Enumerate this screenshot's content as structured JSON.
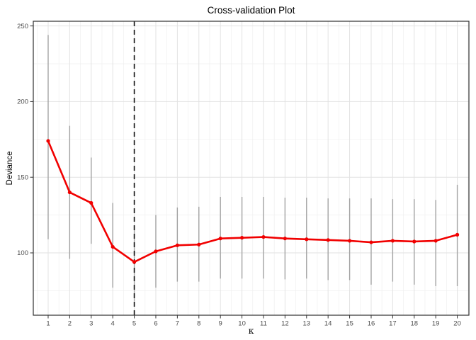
{
  "title": "Cross-validation Plot",
  "chart_data": {
    "type": "line",
    "title": "Cross-validation Plot",
    "xlabel": "κ",
    "ylabel": "Deviance",
    "x": [
      1,
      2,
      3,
      4,
      5,
      6,
      7,
      8,
      9,
      10,
      11,
      12,
      13,
      14,
      15,
      16,
      17,
      18,
      19,
      20
    ],
    "series": [
      {
        "name": "mean-deviance",
        "values": [
          174,
          140,
          133,
          104,
          94,
          101,
          105,
          105.5,
          109.5,
          110,
          110.5,
          109.5,
          109,
          108.5,
          108,
          107,
          108,
          107.5,
          108,
          112
        ]
      }
    ],
    "error_bars": {
      "lower": [
        109,
        96,
        106,
        77,
        68,
        77,
        81,
        81,
        83,
        83,
        83,
        82.5,
        83,
        82,
        82,
        79,
        81,
        79,
        78,
        78
      ],
      "upper": [
        244,
        184,
        163,
        133,
        118,
        125,
        130,
        130.5,
        137,
        137,
        137,
        136.5,
        136.5,
        136,
        136,
        136,
        135.5,
        135.5,
        135,
        145
      ]
    },
    "vline": {
      "x": 5,
      "style": "dashed"
    },
    "x_ticks": [
      1,
      2,
      3,
      4,
      5,
      6,
      7,
      8,
      9,
      10,
      11,
      12,
      13,
      14,
      15,
      16,
      17,
      18,
      19,
      20
    ],
    "y_ticks": [
      100,
      150,
      200,
      250
    ],
    "y_minor_gridlines": [
      75,
      125,
      175,
      225
    ],
    "x_minor_step": 0.5,
    "xlim": [
      0.31,
      20.54
    ],
    "ylim": [
      58.8,
      253.1
    ],
    "grid": true,
    "legend": "none",
    "colors": {
      "line": "#f10000",
      "point": "#f10000",
      "error_bar": "#a3a3a3",
      "grid_major": "#e2e2e2",
      "grid_minor": "#efefef",
      "panel_border": "#2f2f2f",
      "vline": "#111111",
      "tick_mark": "#333333",
      "tick_label": "#4d4d4d",
      "background": "#ffffff"
    }
  }
}
